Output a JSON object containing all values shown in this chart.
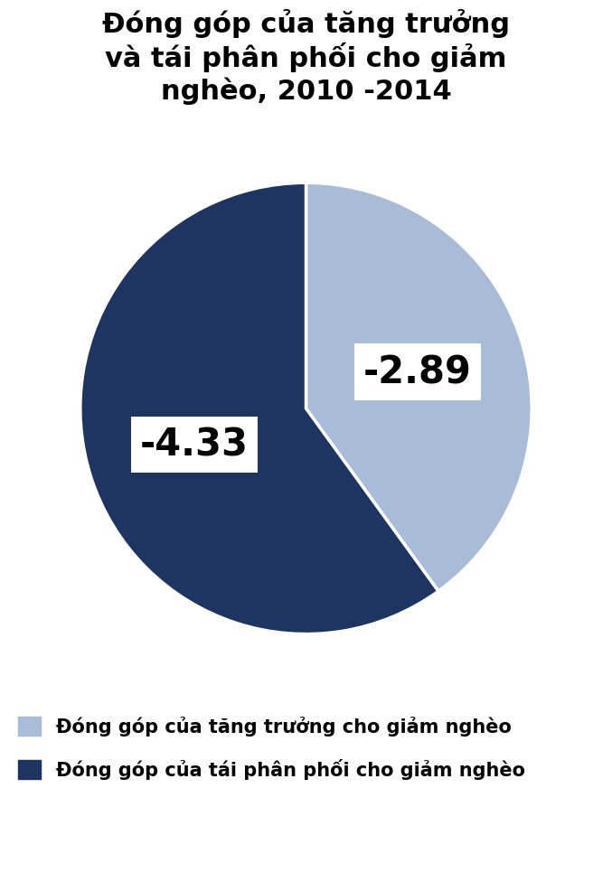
{
  "title": "Đóng góp của tăng trưởng\nvà tái phân phối cho giảm\nnghèo, 2010 -2014",
  "slices": [
    2.89,
    4.33
  ],
  "labels": [
    "-2.89",
    "-4.33"
  ],
  "colors": [
    "#a8bcd8",
    "#1e3461"
  ],
  "legend_labels": [
    "Đóng góp của tăng trưởng cho giảm nghèo",
    "Đóng góp của tái phân phối cho giảm nghèo"
  ],
  "legend_colors": [
    "#a8bcd8",
    "#1e3461"
  ],
  "title_fontsize": 22,
  "label_fontsize": 30,
  "legend_fontsize": 15,
  "background_color": "#ffffff",
  "startangle": 90
}
